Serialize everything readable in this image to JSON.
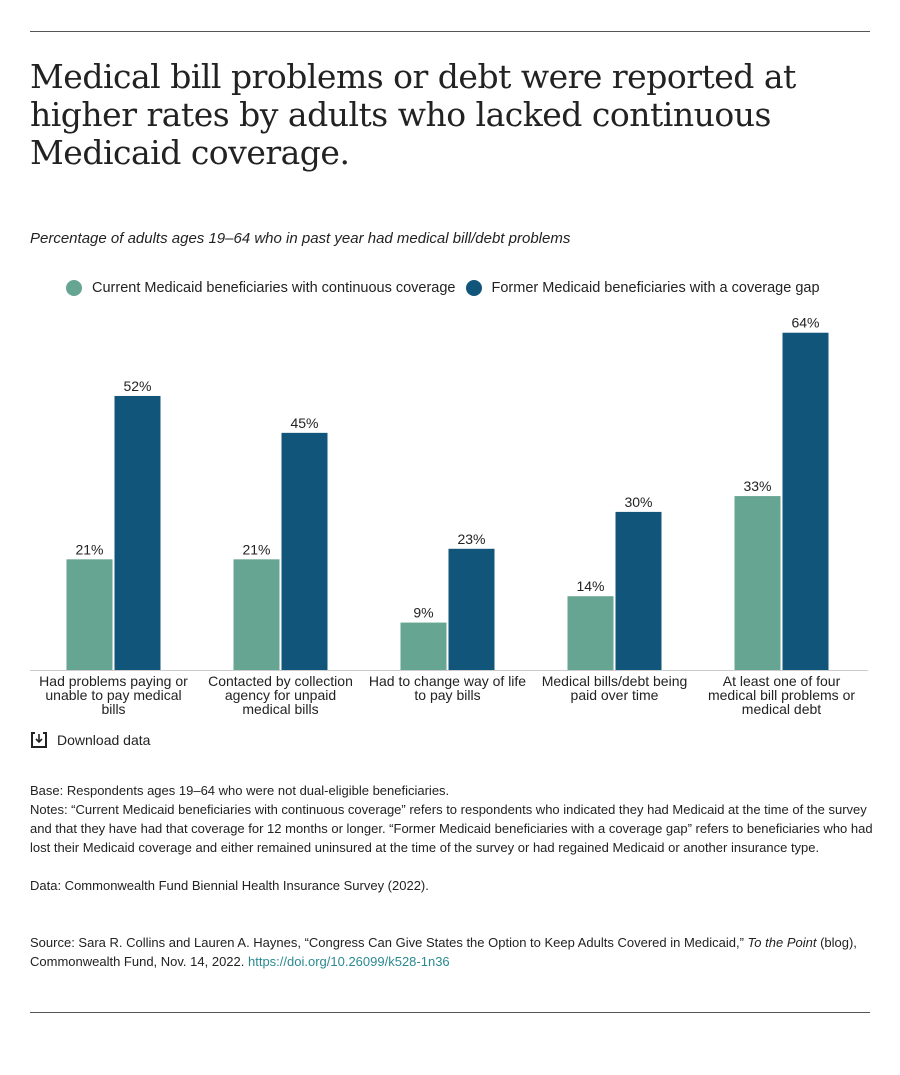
{
  "title": "Medical bill problems or debt were reported at higher rates by adults who lacked continuous Medicaid coverage.",
  "subtitle": "Percentage of adults ages 19–64 who in past year had medical bill/debt problems",
  "download_label": "Download data",
  "notes": {
    "base": "Base: Respondents ages 19–64 who were not dual-eligible beneficiaries.",
    "notes": "Notes: “Current Medicaid beneficiaries with continuous coverage” refers to respondents who indicated they had Medicaid at the time of the survey and that they have had that coverage for 12 months or longer. “Former Medicaid beneficiaries with a coverage gap” refers to beneficiaries who had lost their Medicaid coverage and either remained uninsured at the time of the survey or had regained Medicaid or another insurance type.",
    "data": "Data:  Commonwealth Fund Biennial Health Insurance Survey (2022).",
    "source_pre": "Source: Sara R. Collins and Lauren A. Haynes, “Congress Can Give States the Option to Keep Adults Covered in Medicaid,” ",
    "source_italic": "To the Point",
    "source_post": " (blog), Commonwealth Fund, Nov. 14, 2022. ",
    "source_link": "https://doi.org/10.26099/k528-1n36"
  },
  "chart_data": {
    "type": "bar",
    "categories": [
      [
        "Had problems paying or",
        "unable to pay medical",
        "bills"
      ],
      [
        "Contacted by collection",
        "agency for unpaid",
        "medical bills"
      ],
      [
        "Had to change way of life",
        "to pay bills"
      ],
      [
        "Medical bills/debt being",
        "paid over time"
      ],
      [
        "At least one of four",
        "medical bill problems or",
        "medical debt"
      ]
    ],
    "series": [
      {
        "name": "Current Medicaid beneficiaries with continuous coverage",
        "color": "#66a591",
        "values": [
          21,
          21,
          9,
          14,
          33
        ]
      },
      {
        "name": "Former Medicaid beneficiaries with a coverage gap",
        "color": "#12557a",
        "values": [
          52,
          45,
          23,
          30,
          64
        ]
      }
    ],
    "value_format": "%",
    "ylim": [
      0,
      64
    ],
    "grid": false,
    "legend": "top"
  }
}
